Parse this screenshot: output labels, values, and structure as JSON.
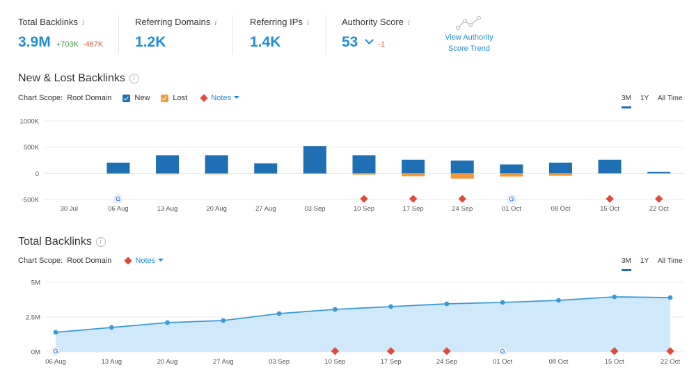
{
  "kpis": {
    "total_backlinks": {
      "label": "Total Backlinks",
      "value": "3.9M",
      "delta_pos": "+703K",
      "delta_neg": "-467K"
    },
    "referring_domains": {
      "label": "Referring Domains",
      "value": "1.2K"
    },
    "referring_ips": {
      "label": "Referring IPs",
      "value": "1.4K"
    },
    "authority_score": {
      "label": "Authority Score",
      "value": "53",
      "delta": "-1"
    },
    "trend_link": {
      "line1": "View Authority",
      "line2": "Score Trend"
    },
    "info_glyph": "i"
  },
  "section1": {
    "title": "New & Lost Backlinks",
    "help_glyph": "i",
    "scope_label": "Chart Scope:",
    "scope_value": "Root Domain",
    "legend_new": "New",
    "legend_lost": "Lost",
    "notes": "Notes",
    "tabs": [
      "3M",
      "1Y",
      "All Time"
    ],
    "active_tab": "3M"
  },
  "section2": {
    "title": "Total Backlinks",
    "help_glyph": "i",
    "scope_label": "Chart Scope:",
    "scope_value": "Root Domain",
    "notes": "Notes",
    "tabs": [
      "3M",
      "1Y",
      "All Time"
    ],
    "active_tab": "3M"
  },
  "colors": {
    "accent": "#1f8dd6",
    "new_bar": "#1f6fb5",
    "lost_bar": "#f29a3a",
    "note": "#e04a3a",
    "area_fill": "#cfe8fa",
    "line": "#3a9ad9",
    "positive": "#3aa13a",
    "negative": "#e25b3a"
  },
  "icons": {
    "info": "info-icon",
    "trend": "trend-line-icon",
    "chevron": "chevron-down-icon",
    "note": "diamond-note-icon",
    "google": "google-g-icon"
  },
  "chart_data": [
    {
      "type": "bar",
      "title": "New & Lost Backlinks",
      "categories": [
        "30 Jul",
        "06 Aug",
        "13 Aug",
        "20 Aug",
        "27 Aug",
        "03 Sep",
        "10 Sep",
        "17 Sep",
        "24 Sep",
        "01 Oct",
        "08 Oct",
        "15 Oct",
        "22 Oct"
      ],
      "series": [
        {
          "name": "New",
          "values": [
            0,
            205000,
            345000,
            345000,
            190000,
            520000,
            345000,
            260000,
            245000,
            170000,
            205000,
            260000,
            30000
          ]
        },
        {
          "name": "Lost",
          "values": [
            0,
            -10000,
            -15000,
            -15000,
            -10000,
            -10000,
            -25000,
            -55000,
            -100000,
            -60000,
            -45000,
            -5000,
            -5000
          ]
        }
      ],
      "y_ticks": [
        "1000K",
        "500K",
        "0",
        "-500K"
      ],
      "ylim": [
        -500000,
        1000000
      ],
      "notes_markers": [
        "10 Sep",
        "17 Sep",
        "24 Sep",
        "15 Oct",
        "22 Oct"
      ],
      "google_markers": [
        "06 Aug",
        "01 Oct"
      ],
      "grid": true
    },
    {
      "type": "area",
      "title": "Total Backlinks",
      "x": [
        "06 Aug",
        "13 Aug",
        "20 Aug",
        "27 Aug",
        "03 Sep",
        "10 Sep",
        "17 Sep",
        "24 Sep",
        "01 Oct",
        "08 Oct",
        "15 Oct",
        "22 Oct"
      ],
      "values": [
        1400000,
        1750000,
        2100000,
        2250000,
        2750000,
        3050000,
        3250000,
        3450000,
        3550000,
        3700000,
        3950000,
        3900000
      ],
      "y_ticks": [
        "5M",
        "2.5M",
        "0M"
      ],
      "ylim": [
        0,
        5000000
      ],
      "notes_markers": [
        "10 Sep",
        "17 Sep",
        "24 Sep",
        "15 Oct",
        "22 Oct"
      ],
      "google_markers": [
        "06 Aug",
        "01 Oct"
      ],
      "grid": true
    }
  ]
}
